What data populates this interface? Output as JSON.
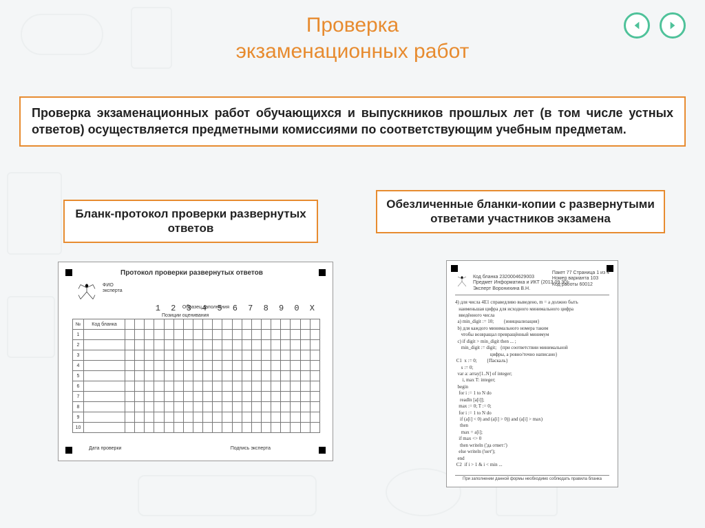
{
  "colors": {
    "accent_orange": "#e78b2f",
    "accent_green": "#4fc29a",
    "page_bg": "#f4f6f7",
    "text": "#222222",
    "border_gray": "#999999"
  },
  "title_line1": "Проверка",
  "title_line2": "экзаменационных работ",
  "intro_text": "Проверка экзаменационных работ обучающихся и выпускников прошлых лет (в том числе устных ответов) осуществляется предметными комиссиями  по соответствующим учебным предметам.",
  "left_label": "Бланк-протокол проверки развернутых ответов",
  "right_label": "Обезличенные бланки-копии с развернутыми ответами участников экзамена",
  "protocol_form": {
    "title": "Протокол проверки развернутых ответов",
    "meta_lines": [
      "ФИО",
      "эксперта"
    ],
    "sample_digits": "1 2 3 4 5 6 7 8 9 0 X",
    "section_caption": "Позиции оценивания",
    "sample_label": "Образец заполнения",
    "row_header_num": "№",
    "row_header_code": "Код бланка",
    "position_columns": 20,
    "rows": [
      "1",
      "2",
      "3",
      "4",
      "5",
      "6",
      "7",
      "8",
      "9",
      "10"
    ],
    "footer_left": "Дата\nпроверки",
    "footer_right": "Подпись\nэксперта"
  },
  "answer_copy": {
    "header": {
      "barcode": "Код бланка  2320004629003",
      "predmet": "Предмет   Информатика и ИКТ (2013.09.30)",
      "expert": "Эксперт   Воронихина В.Н.",
      "right_top": "Пакет 77   Страница 1  из  4",
      "variant": "Номер варианта  103",
      "work_code": "Код работы  60012"
    },
    "handwritten": "4) для числа 4E1 справедливо выведено, m = a должно быть\n   наименьшая цифра для исходного минимального цифра\n   введённого числа\n  a) min_digit := 10;        {инициализация}\n  b) для каждого минимального номера таким\n     чтобы возвращал превращённый минимум\n  c) if digit > min_digit then ... ;\n     min_digit := digit;   {при соответствии минимальной\n                             цифры, а ровно/точно написано}\n C1  x := 0;        {Паскаль}\n     s := 0;\n  var a: array[1..N] of integer;\n      i, max T: integer;\n  begin\n   for i := 1 to N do\n    readln [a[i]];\n   max := 0; T := 0;\n   for i := 1 to N do\n    if (a[i] < 0) and (a[i] > 0)) and (a[i] > max)\n    then\n     max = a[i];\n   if max <> 0\n    then writeln ('да ответ:')\n   else writeln ('нет');\n  end\n C2  if i > 1 & i < min ...",
    "footer_note": "При заполнении данной формы необходимо соблюдать правила бланка"
  },
  "nav": {
    "prev": "previous-slide",
    "next": "next-slide"
  }
}
